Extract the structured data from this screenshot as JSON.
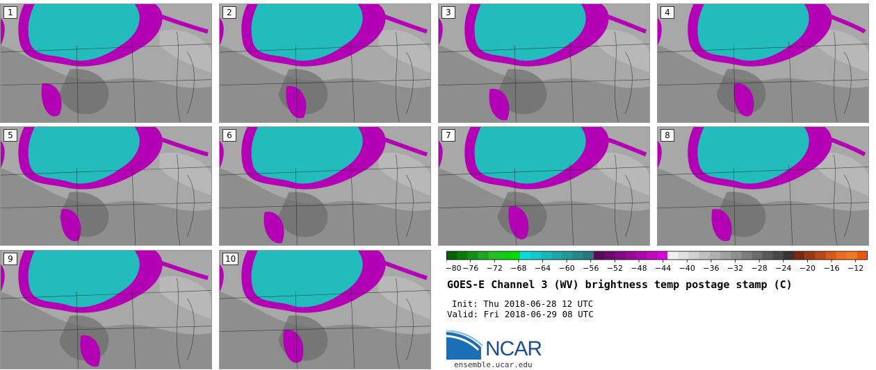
{
  "title": "GOES-E Channel 3 (WV) brightness temp postage stamp (C)",
  "init_line": "Init: Thu 2018-06-28 12 UTC",
  "valid_line": "Valid: Fri 2018-06-29 08 UTC",
  "logo_text": "NCAR",
  "site": "ensemble.ucar.edu",
  "panels": [
    {
      "label": "1"
    },
    {
      "label": "2"
    },
    {
      "label": "3"
    },
    {
      "label": "4"
    },
    {
      "label": "5"
    },
    {
      "label": "6"
    },
    {
      "label": "7"
    },
    {
      "label": "8"
    },
    {
      "label": "9"
    },
    {
      "label": "10"
    }
  ],
  "colorbar": {
    "tick_labels": [
      "−80",
      "−76",
      "−72",
      "−68",
      "−64",
      "−60",
      "−56",
      "−52",
      "−48",
      "−44",
      "−40",
      "−36",
      "−32",
      "−28",
      "−24",
      "−20",
      "−16",
      "−12"
    ],
    "min": -80,
    "max": -10,
    "step": 2,
    "colors": [
      "#006400",
      "#0a7a0a",
      "#149014",
      "#1ea61e",
      "#28bc28",
      "#12cc12",
      "#00dc00",
      "#10d8d8",
      "#14c8c8",
      "#18b8b8",
      "#1ca8a8",
      "#209898",
      "#248888",
      "#287878",
      "#5a0a5a",
      "#6e0a6e",
      "#820a82",
      "#960a96",
      "#aa0aaa",
      "#be0abe",
      "#d40ad4",
      "#f0f0f0",
      "#e0e0e0",
      "#d0d0d0",
      "#c0c0c0",
      "#b0b0b0",
      "#a0a0a0",
      "#909090",
      "#7e7e7e",
      "#6c6c6c",
      "#5a5a5a",
      "#484848",
      "#363636",
      "#7a2a10",
      "#9a3a14",
      "#b84a18",
      "#d45a1c",
      "#ee6a20",
      "#f07820",
      "#e85a10"
    ]
  },
  "map_colors": {
    "cloud_cold": "#22bcbc",
    "cloud_edge": "#b400b4",
    "bg_light": "#a8a8a8",
    "bg_dark": "#666666",
    "border": "#222222"
  }
}
